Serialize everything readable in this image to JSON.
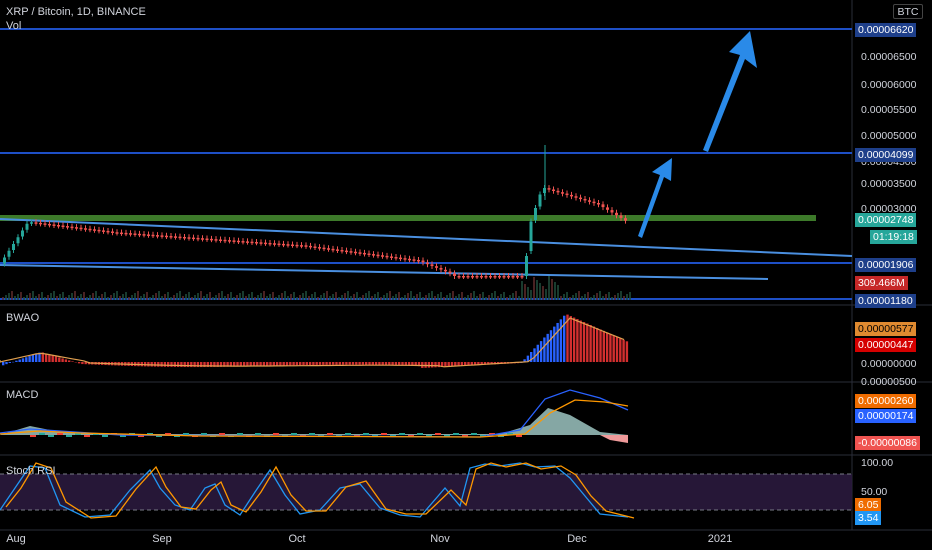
{
  "header": {
    "symbol": "XRP / Bitcoin, 1D, BINANCE",
    "volume_label": "Vol"
  },
  "currency_button": "BTC",
  "price_axis": {
    "ticks": [
      "0.00006500",
      "0.00006000",
      "0.00005500",
      "0.00005000",
      "0.00004500",
      "0.00003500",
      "0.00003000"
    ],
    "levels": {
      "top": "0.00006620",
      "mid": "0.00004099",
      "low": "0.00001906",
      "bottom": "0.00001180"
    },
    "last_price": "0.00002748",
    "countdown": "01:19:18",
    "volume": "309.466M"
  },
  "panes": {
    "bwao": {
      "label": "BWAO",
      "values": [
        "0.00000577",
        "0.00000447",
        "0.00000000"
      ]
    },
    "macd": {
      "label": "MACD",
      "values": [
        "0.00000260",
        "0.00000174",
        "-0.00000086"
      ],
      "axis_top": "0.00000500"
    },
    "stoch": {
      "label": "Stoch RSI",
      "values": [
        "6.05",
        "3.54"
      ],
      "axis": [
        "100.00",
        "50.00"
      ]
    }
  },
  "time_axis": [
    "Aug",
    "Sep",
    "Oct",
    "Nov",
    "Dec",
    "2021"
  ],
  "colors": {
    "up": "#26a69a",
    "down": "#ef5350",
    "level_line": "#2962ff",
    "trend_line": "#4a8fe0",
    "arrow": "#2a8ae8",
    "support_zone": "#3d7a2a",
    "bwao_up": "#2962ff",
    "bwao_down": "#d32f2f",
    "stoch_k": "#2196f3",
    "stoch_d": "#ff9800",
    "stoch_band": "#2a1a3d"
  }
}
